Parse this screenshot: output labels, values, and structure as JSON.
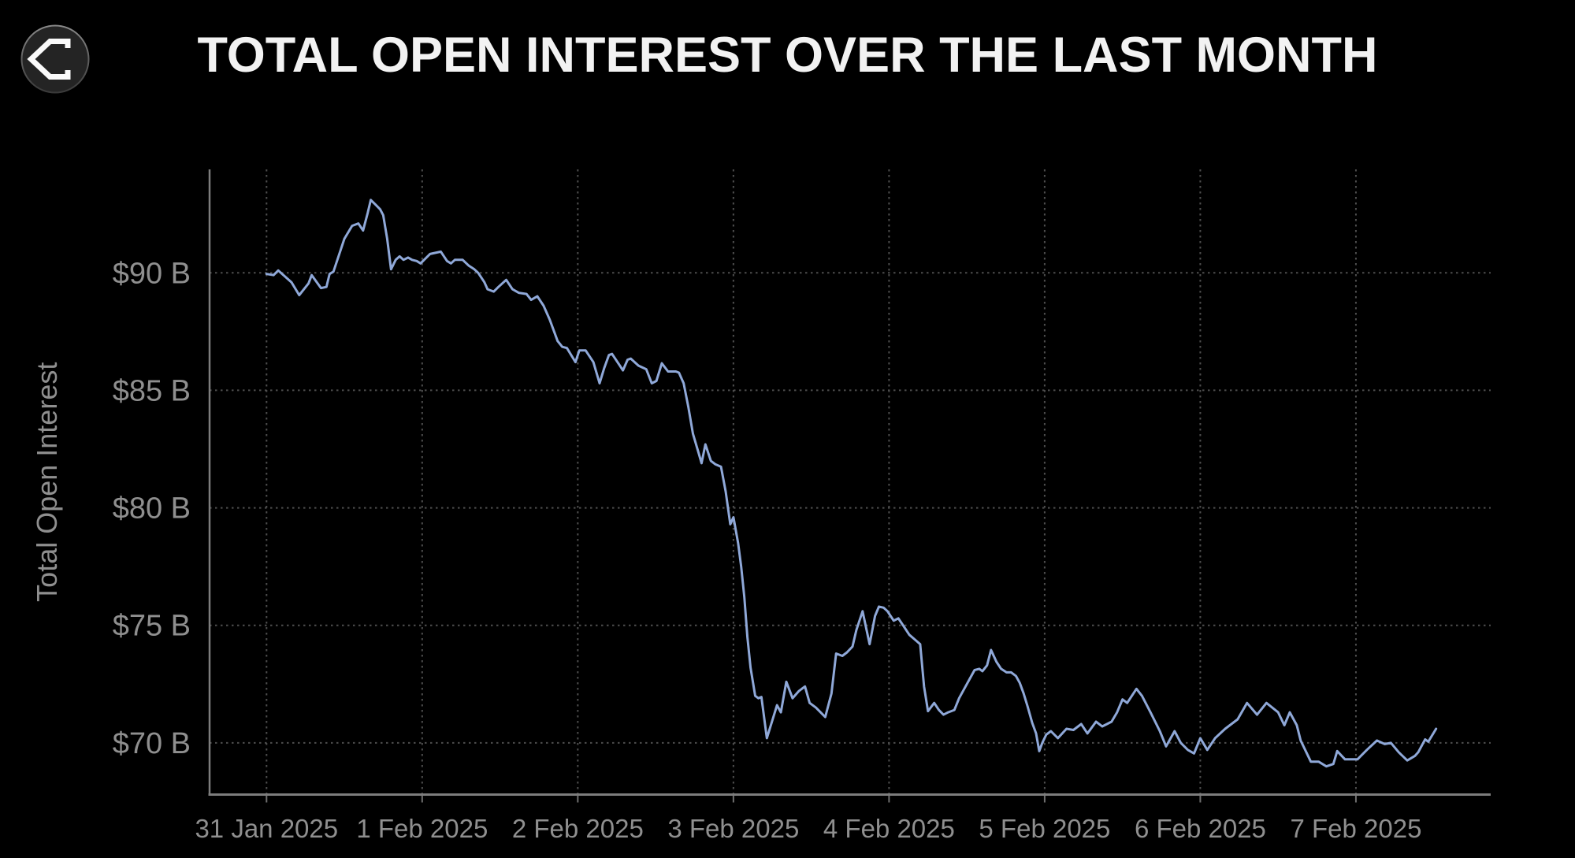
{
  "header": {
    "title": "TOTAL OPEN INTEREST OVER THE LAST MONTH"
  },
  "logo": {
    "icon": "sigma-icon"
  },
  "colors": {
    "background": "#000000",
    "title": "#f2f2f2",
    "line": "#8FA8D8",
    "axis": "#7d7d7d",
    "grid": "#4e4e4e",
    "tick_label": "#8f8f8f",
    "axis_label": "#8f8f8f",
    "logo_circle": "#242424",
    "logo_ring": "#6a6a6a",
    "logo_glyph": "#fafafa"
  },
  "chart_data": {
    "type": "line",
    "title": "TOTAL OPEN INTEREST OVER THE LAST MONTH",
    "xlabel": "",
    "ylabel": "Total Open Interest",
    "unit": "USD billions",
    "grid": "dotted",
    "legend_position": "none",
    "xlim_days": [
      -0.366,
      7.866
    ],
    "ylim": [
      67.8,
      94.4
    ],
    "x_ticks": [
      {
        "day": 0,
        "label": "31 Jan 2025"
      },
      {
        "day": 1,
        "label": "1 Feb 2025"
      },
      {
        "day": 2,
        "label": "2 Feb 2025"
      },
      {
        "day": 3,
        "label": "3 Feb 2025"
      },
      {
        "day": 4,
        "label": "4 Feb 2025"
      },
      {
        "day": 5,
        "label": "5 Feb 2025"
      },
      {
        "day": 6,
        "label": "6 Feb 2025"
      },
      {
        "day": 7,
        "label": "7 Feb 2025"
      }
    ],
    "y_ticks": [
      {
        "value": 90,
        "label": "$90 B"
      },
      {
        "value": 85,
        "label": "$85 B"
      },
      {
        "value": 80,
        "label": "$80 B"
      },
      {
        "value": 75,
        "label": "$75 B"
      },
      {
        "value": 70,
        "label": "$70 B"
      }
    ],
    "series": [
      {
        "name": "Total Open Interest ($B)",
        "color": "#8FA8D8",
        "points_day_value": [
          [
            0,
            89.95
          ],
          [
            0.045,
            89.9
          ],
          [
            0.075,
            90.1
          ],
          [
            0.16,
            89.6
          ],
          [
            0.21,
            89.05
          ],
          [
            0.27,
            89.55
          ],
          [
            0.29,
            89.9
          ],
          [
            0.35,
            89.35
          ],
          [
            0.385,
            89.4
          ],
          [
            0.405,
            89.95
          ],
          [
            0.43,
            90.05
          ],
          [
            0.5,
            91.45
          ],
          [
            0.55,
            92
          ],
          [
            0.59,
            92.1
          ],
          [
            0.62,
            91.8
          ],
          [
            0.65,
            92.55
          ],
          [
            0.67,
            93.1
          ],
          [
            0.7,
            92.9
          ],
          [
            0.73,
            92.7
          ],
          [
            0.75,
            92.45
          ],
          [
            0.775,
            91.45
          ],
          [
            0.8,
            90.15
          ],
          [
            0.83,
            90.55
          ],
          [
            0.855,
            90.7
          ],
          [
            0.88,
            90.55
          ],
          [
            0.91,
            90.65
          ],
          [
            0.935,
            90.55
          ],
          [
            0.965,
            90.5
          ],
          [
            0.99,
            90.4
          ],
          [
            1.05,
            90.8
          ],
          [
            1.12,
            90.9
          ],
          [
            1.16,
            90.5
          ],
          [
            1.185,
            90.4
          ],
          [
            1.21,
            90.55
          ],
          [
            1.26,
            90.55
          ],
          [
            1.3,
            90.3
          ],
          [
            1.335,
            90.15
          ],
          [
            1.36,
            90
          ],
          [
            1.4,
            89.6
          ],
          [
            1.42,
            89.3
          ],
          [
            1.46,
            89.2
          ],
          [
            1.49,
            89.4
          ],
          [
            1.54,
            89.7
          ],
          [
            1.58,
            89.3
          ],
          [
            1.62,
            89.15
          ],
          [
            1.67,
            89.1
          ],
          [
            1.7,
            88.85
          ],
          [
            1.74,
            89
          ],
          [
            1.78,
            88.6
          ],
          [
            1.82,
            88
          ],
          [
            1.87,
            87.1
          ],
          [
            1.9,
            86.85
          ],
          [
            1.93,
            86.8
          ],
          [
            1.985,
            86.2
          ],
          [
            2.01,
            86.7
          ],
          [
            2.05,
            86.7
          ],
          [
            2.1,
            86.2
          ],
          [
            2.14,
            85.3
          ],
          [
            2.17,
            85.95
          ],
          [
            2.2,
            86.5
          ],
          [
            2.22,
            86.55
          ],
          [
            2.27,
            86.05
          ],
          [
            2.29,
            85.85
          ],
          [
            2.32,
            86.3
          ],
          [
            2.34,
            86.35
          ],
          [
            2.39,
            86.05
          ],
          [
            2.44,
            85.9
          ],
          [
            2.475,
            85.3
          ],
          [
            2.505,
            85.4
          ],
          [
            2.54,
            86.15
          ],
          [
            2.58,
            85.8
          ],
          [
            2.63,
            85.8
          ],
          [
            2.65,
            85.75
          ],
          [
            2.68,
            85.3
          ],
          [
            2.71,
            84.3
          ],
          [
            2.74,
            83.15
          ],
          [
            2.78,
            82.25
          ],
          [
            2.795,
            81.9
          ],
          [
            2.82,
            82.7
          ],
          [
            2.855,
            82
          ],
          [
            2.885,
            81.85
          ],
          [
            2.92,
            81.75
          ],
          [
            2.95,
            80.7
          ],
          [
            2.98,
            79.3
          ],
          [
            3,
            79.6
          ],
          [
            3.03,
            78.5
          ],
          [
            3.05,
            77.5
          ],
          [
            3.07,
            76.2
          ],
          [
            3.09,
            74.5
          ],
          [
            3.11,
            73.2
          ],
          [
            3.14,
            72
          ],
          [
            3.16,
            71.9
          ],
          [
            3.18,
            71.95
          ],
          [
            3.215,
            70.2
          ],
          [
            3.28,
            71.6
          ],
          [
            3.305,
            71.3
          ],
          [
            3.34,
            72.6
          ],
          [
            3.38,
            71.9
          ],
          [
            3.42,
            72.2
          ],
          [
            3.46,
            72.4
          ],
          [
            3.49,
            71.7
          ],
          [
            3.53,
            71.5
          ],
          [
            3.59,
            71.1
          ],
          [
            3.63,
            72.1
          ],
          [
            3.66,
            73.8
          ],
          [
            3.7,
            73.7
          ],
          [
            3.73,
            73.85
          ],
          [
            3.765,
            74.1
          ],
          [
            3.79,
            74.8
          ],
          [
            3.83,
            75.6
          ],
          [
            3.875,
            74.2
          ],
          [
            3.91,
            75.4
          ],
          [
            3.935,
            75.8
          ],
          [
            3.965,
            75.75
          ],
          [
            3.99,
            75.6
          ],
          [
            4.03,
            75.2
          ],
          [
            4.06,
            75.3
          ],
          [
            4.09,
            75
          ],
          [
            4.13,
            74.6
          ],
          [
            4.165,
            74.4
          ],
          [
            4.2,
            74.2
          ],
          [
            4.225,
            72.4
          ],
          [
            4.25,
            71.35
          ],
          [
            4.29,
            71.7
          ],
          [
            4.32,
            71.4
          ],
          [
            4.35,
            71.2
          ],
          [
            4.38,
            71.3
          ],
          [
            4.42,
            71.4
          ],
          [
            4.45,
            71.9
          ],
          [
            4.5,
            72.5
          ],
          [
            4.55,
            73.1
          ],
          [
            4.58,
            73.15
          ],
          [
            4.6,
            73.05
          ],
          [
            4.63,
            73.3
          ],
          [
            4.655,
            73.95
          ],
          [
            4.69,
            73.45
          ],
          [
            4.72,
            73.15
          ],
          [
            4.755,
            73
          ],
          [
            4.785,
            73
          ],
          [
            4.815,
            72.85
          ],
          [
            4.84,
            72.55
          ],
          [
            4.865,
            72.1
          ],
          [
            4.89,
            71.55
          ],
          [
            4.92,
            70.85
          ],
          [
            4.945,
            70.4
          ],
          [
            4.965,
            69.65
          ],
          [
            4.985,
            70
          ],
          [
            5.01,
            70.35
          ],
          [
            5.04,
            70.5
          ],
          [
            5.085,
            70.2
          ],
          [
            5.14,
            70.6
          ],
          [
            5.185,
            70.55
          ],
          [
            5.235,
            70.8
          ],
          [
            5.275,
            70.4
          ],
          [
            5.33,
            70.9
          ],
          [
            5.37,
            70.7
          ],
          [
            5.43,
            70.9
          ],
          [
            5.465,
            71.3
          ],
          [
            5.5,
            71.85
          ],
          [
            5.53,
            71.7
          ],
          [
            5.59,
            72.3
          ],
          [
            5.625,
            72
          ],
          [
            5.68,
            71.3
          ],
          [
            5.74,
            70.5
          ],
          [
            5.78,
            69.85
          ],
          [
            5.835,
            70.5
          ],
          [
            5.875,
            70
          ],
          [
            5.92,
            69.7
          ],
          [
            5.96,
            69.55
          ],
          [
            6,
            70.2
          ],
          [
            6.045,
            69.7
          ],
          [
            6.095,
            70.2
          ],
          [
            6.16,
            70.6
          ],
          [
            6.24,
            71
          ],
          [
            6.3,
            71.7
          ],
          [
            6.365,
            71.2
          ],
          [
            6.425,
            71.7
          ],
          [
            6.5,
            71.3
          ],
          [
            6.54,
            70.75
          ],
          [
            6.575,
            71.3
          ],
          [
            6.62,
            70.75
          ],
          [
            6.645,
            70.1
          ],
          [
            6.71,
            69.2
          ],
          [
            6.76,
            69.2
          ],
          [
            6.81,
            69
          ],
          [
            6.855,
            69.1
          ],
          [
            6.88,
            69.65
          ],
          [
            6.93,
            69.3
          ],
          [
            6.98,
            69.3
          ],
          [
            7.01,
            69.3
          ],
          [
            7.07,
            69.7
          ],
          [
            7.135,
            70.1
          ],
          [
            7.185,
            69.95
          ],
          [
            7.225,
            70
          ],
          [
            7.275,
            69.6
          ],
          [
            7.33,
            69.25
          ],
          [
            7.38,
            69.45
          ],
          [
            7.4,
            69.6
          ],
          [
            7.445,
            70.15
          ],
          [
            7.465,
            70.05
          ],
          [
            7.515,
            70.6
          ]
        ]
      }
    ]
  }
}
